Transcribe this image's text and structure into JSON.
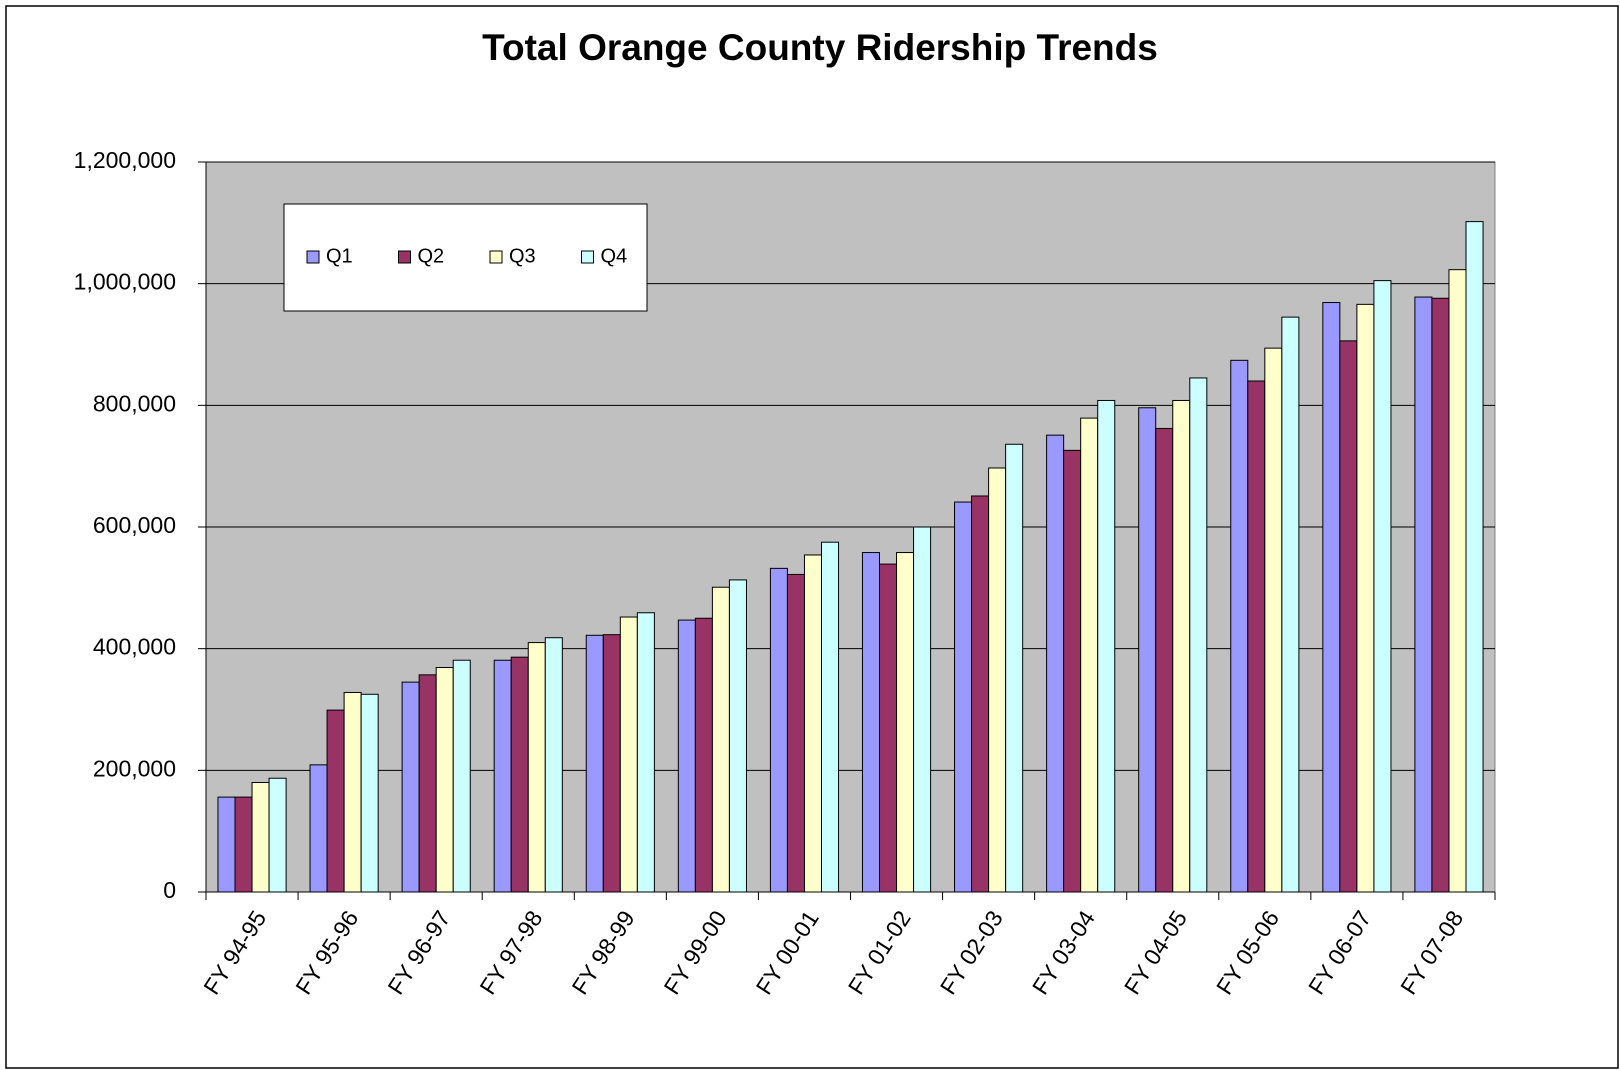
{
  "chart_data": {
    "type": "bar",
    "title": "Total Orange County Ridership Trends",
    "categories": [
      "FY 94-95",
      "FY 95-96",
      "FY 96-97",
      "FY 97-98",
      "FY 98-99",
      "FY 99-00",
      "FY 00-01",
      "FY 01-02",
      "FY 02-03",
      "FY 03-04",
      "FY 04-05",
      "FY 05-06",
      "FY 06-07",
      "FY 07-08"
    ],
    "series": [
      {
        "name": "Q1",
        "color": "#9999ff",
        "values": [
          156000,
          209000,
          345000,
          381000,
          422000,
          447000,
          532000,
          558000,
          641000,
          751000,
          796000,
          874000,
          969000,
          978000
        ]
      },
      {
        "name": "Q2",
        "color": "#993366",
        "values": [
          156000,
          299000,
          357000,
          386000,
          423000,
          450000,
          522000,
          539000,
          651000,
          726000,
          762000,
          840000,
          906000,
          976000
        ]
      },
      {
        "name": "Q3",
        "color": "#ffffcc",
        "values": [
          180000,
          328000,
          369000,
          410000,
          452000,
          501000,
          554000,
          558000,
          697000,
          779000,
          808000,
          894000,
          966000,
          1023000
        ]
      },
      {
        "name": "Q4",
        "color": "#ccffff",
        "values": [
          187000,
          325000,
          381000,
          418000,
          459000,
          513000,
          575000,
          600000,
          736000,
          808000,
          845000,
          945000,
          1005000,
          1102000
        ]
      }
    ],
    "ylim": [
      0,
      1200000
    ],
    "yticks": [
      0,
      {
        "value": 200000,
        "label": "200,000"
      },
      {
        "value": 400000,
        "label": "400,000"
      },
      {
        "value": 600000,
        "label": "600,000"
      },
      {
        "value": 800000,
        "label": "800,000"
      },
      {
        "value": 1000000,
        "label": "1,000,000"
      },
      {
        "value": 1200000,
        "label": "1,200,000"
      }
    ],
    "grid": true,
    "plot_background": "#c0c0c0"
  }
}
